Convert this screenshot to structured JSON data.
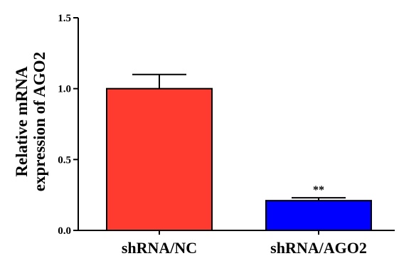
{
  "chart_data": {
    "type": "bar",
    "categories": [
      "shRNA/NC",
      "shRNA/AGO2"
    ],
    "values": [
      1.0,
      0.21
    ],
    "errors": [
      0.1,
      0.02
    ],
    "colors": [
      "#ff3b30",
      "#0000ff"
    ],
    "ylabel_lines": [
      "Relative mRNA",
      "expression of AGO2"
    ],
    "ylim": [
      0,
      1.5
    ],
    "yticks": [
      "0.0",
      "0.5",
      "1.0",
      "1.5"
    ],
    "annotations": [
      {
        "category": "shRNA/AGO2",
        "text": "**"
      }
    ],
    "grid": false,
    "legend": "none"
  }
}
